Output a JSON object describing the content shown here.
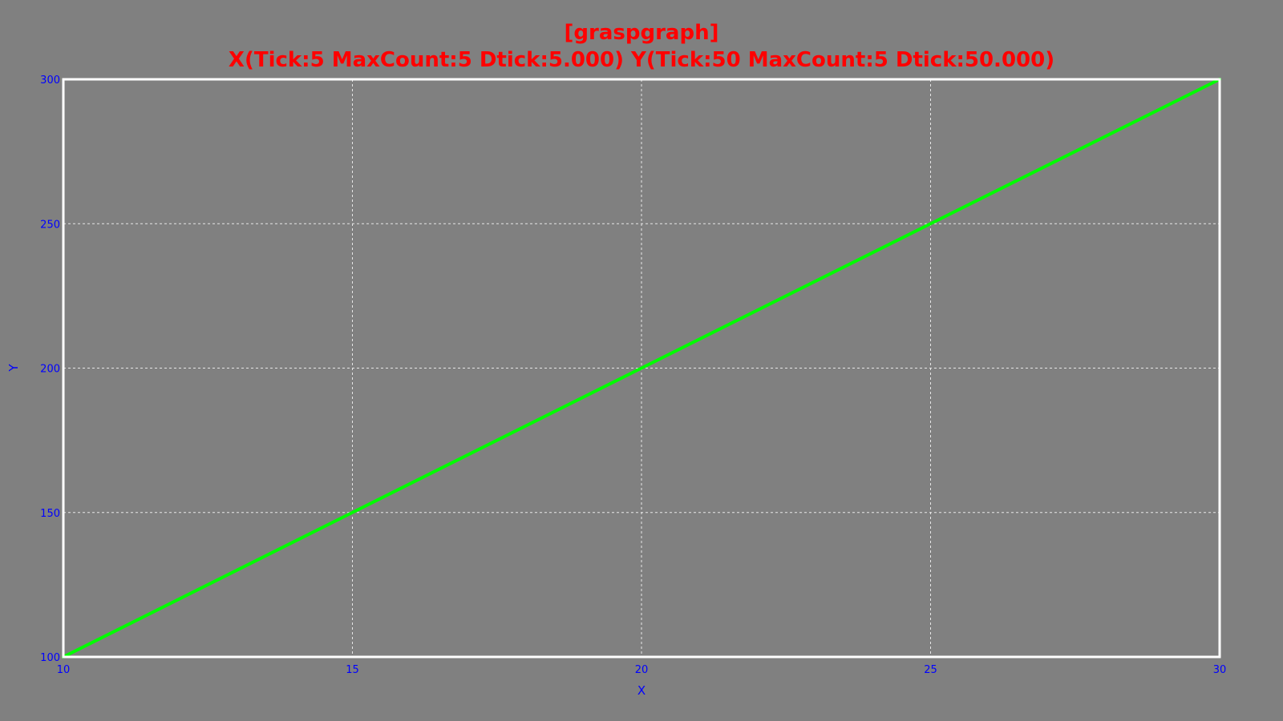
{
  "chart_data": {
    "type": "line",
    "title": "[graspgraph]",
    "subtitle": "X(Tick:5 MaxCount:5 Dtick:5.000) Y(Tick:50 MaxCount:5 Dtick:50.000)",
    "xlabel": "X",
    "ylabel": "Y",
    "xlim": [
      10,
      30
    ],
    "ylim": [
      100,
      300
    ],
    "x_ticks": [
      "10",
      "15",
      "20",
      "25",
      "30"
    ],
    "y_ticks": [
      "100",
      "150",
      "200",
      "250",
      "300"
    ],
    "grid": true,
    "series": [
      {
        "x": [
          10,
          15,
          20,
          25,
          30
        ],
        "values": [
          100,
          150,
          200,
          250,
          300
        ],
        "color": "#00ff00"
      }
    ],
    "colors": {
      "background": "#808080",
      "title": "#ff0000",
      "ticks": "#0000ff",
      "frame": "#ffffff",
      "grid": "#e6e6e6"
    }
  }
}
